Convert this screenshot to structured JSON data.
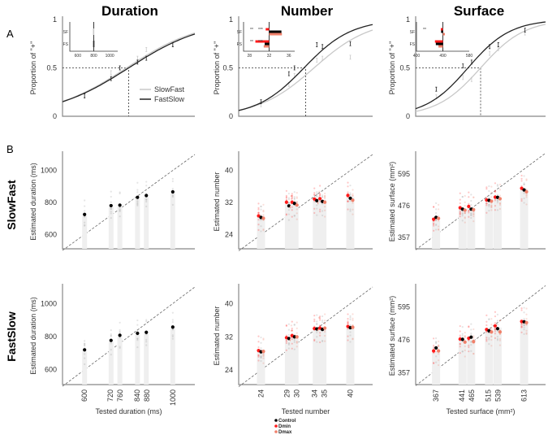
{
  "colors": {
    "control": "#000000",
    "dmin": "#ff1a1a",
    "dmax": "#f0806a",
    "slowfast": "#c8c8c8",
    "fastslow": "#222222",
    "column": "#efefef"
  },
  "titles": [
    "Duration",
    "Number",
    "Surface"
  ],
  "panel_labels": {
    "a": "A",
    "b": "B"
  },
  "row_labels": [
    "SlowFast",
    "FastSlow"
  ],
  "legend_a": {
    "slowfast": "SlowFast",
    "fastslow": "FastSlow"
  },
  "legend_b": {
    "control": "Control",
    "dmin": "Dmin",
    "dmax": "Dmax"
  },
  "chart_data": [
    {
      "type": "line",
      "panel": "A",
      "dimension": "Duration",
      "ylabel": "Proportion of \"+\"",
      "yticks": [
        "0",
        "0.5",
        "1"
      ],
      "ylim": [
        0,
        1
      ],
      "xlim": [
        500,
        1100
      ],
      "standard": 800,
      "x": [
        600,
        720,
        760,
        840,
        880,
        1000
      ],
      "series": [
        {
          "name": "SlowFast",
          "pse": 790,
          "slope": 170,
          "values": [
            0.22,
            0.45,
            0.5,
            0.6,
            0.69,
            0.75
          ]
        },
        {
          "name": "FastSlow",
          "pse": 800,
          "slope": 173,
          "values": [
            0.21,
            0.39,
            0.5,
            0.56,
            0.6,
            0.74
          ]
        }
      ],
      "inset": {
        "xticks": [
          "600",
          "800",
          "1000"
        ],
        "xtick_values": [
          600,
          800,
          1000
        ],
        "xlim": [
          500,
          1100
        ],
        "rows": [
          "SF",
          "FS"
        ],
        "bars": {
          "SF": {
            "control": 798
          },
          "FS": {
            "control": 800
          }
        }
      }
    },
    {
      "type": "line",
      "panel": "A",
      "dimension": "Number",
      "ylabel": "Proportion of \"+\"",
      "yticks": [
        "0",
        "0.5",
        "1"
      ],
      "ylim": [
        0,
        1
      ],
      "xlim": [
        20,
        44
      ],
      "standard": 32,
      "x": [
        24,
        29,
        30,
        34,
        35,
        40
      ],
      "series": [
        {
          "name": "SlowFast",
          "pse": 33.5,
          "slope": 5,
          "values": [
            0.12,
            0.33,
            0.42,
            0.58,
            0.6,
            0.61
          ]
        },
        {
          "name": "FastSlow",
          "pse": 31.7,
          "slope": 4.25,
          "values": [
            0.15,
            0.44,
            0.5,
            0.74,
            0.72,
            0.75
          ]
        }
      ],
      "inset": {
        "xticks": [
          "28",
          "32",
          "36"
        ],
        "xtick_values": [
          28,
          32,
          36
        ],
        "xlim": [
          26.8,
          37.2
        ],
        "rows": [
          "SF",
          "FS"
        ],
        "bars": {
          "SF": {
            "dmin": 31.3,
            "control": 34.5,
            "dmax": 34.6
          },
          "FS": {
            "dmin": 29.2,
            "control": 31.1,
            "dmax": 30.9
          }
        },
        "annotations": [
          "**",
          "***",
          "**",
          "***"
        ]
      }
    },
    {
      "type": "line",
      "panel": "A",
      "dimension": "Surface",
      "ylabel": "Proportion of \"+\"",
      "yticks": [
        "0",
        "0.5",
        "1"
      ],
      "ylim": [
        0,
        1
      ],
      "xlim": [
        310,
        670
      ],
      "standard": 490,
      "x": [
        367,
        441,
        465,
        515,
        539,
        613
      ],
      "series": [
        {
          "name": "SlowFast",
          "pse": 490,
          "slope": 61,
          "values": [
            0.2,
            0.4,
            0.38,
            0.65,
            0.7,
            0.86
          ]
        },
        {
          "name": "FastSlow",
          "pse": 455,
          "slope": 59,
          "values": [
            0.28,
            0.52,
            0.56,
            0.72,
            0.74,
            0.89
          ]
        }
      ],
      "inset": {
        "xticks": [
          "400",
          "490",
          "580"
        ],
        "xtick_values": [
          400,
          490,
          580
        ],
        "xlim": [
          400,
          580
        ],
        "rows": [
          "SF",
          "FS"
        ],
        "bars": {
          "SF": {
            "dmin": 483,
            "control": 484,
            "dmax": 497
          },
          "FS": {
            "dmin": 463,
            "control": 466,
            "dmax": 475
          }
        },
        "annotations": [
          "**"
        ]
      }
    },
    {
      "type": "scatter",
      "panel": "B",
      "dimension": "Duration",
      "condition": "SlowFast",
      "ylabel": "Estimated duration (ms)",
      "xlabel": "Tested duration (ms)",
      "yticks": [
        600,
        800,
        1000
      ],
      "xlim": [
        500,
        1100
      ],
      "ylim": [
        510,
        1100
      ],
      "x": [
        600,
        720,
        760,
        840,
        880,
        1000
      ],
      "series": [
        {
          "name": "Control",
          "values": [
            725,
            780,
            783,
            832,
            843,
            866
          ]
        }
      ]
    },
    {
      "type": "scatter",
      "panel": "B",
      "dimension": "Number",
      "condition": "SlowFast",
      "ylabel": "Estimated number",
      "xlabel": "Tested number",
      "yticks": [
        24,
        32,
        40
      ],
      "xlim": [
        20,
        44
      ],
      "ylim": [
        20.5,
        44
      ],
      "x": [
        24,
        29,
        30,
        34,
        35,
        40
      ],
      "series": [
        {
          "name": "Dmin",
          "values": [
            28.7,
            32.1,
            32.1,
            32.9,
            33.0,
            33.8
          ]
        },
        {
          "name": "Control",
          "values": [
            28.3,
            31.2,
            31.8,
            32.5,
            32.3,
            33.1
          ]
        },
        {
          "name": "Dmax",
          "values": [
            28.1,
            30.9,
            31.4,
            31.9,
            32.1,
            32.6
          ]
        }
      ]
    },
    {
      "type": "scatter",
      "panel": "B",
      "dimension": "Surface",
      "condition": "SlowFast",
      "ylabel": "Estimated surface (mm²)",
      "xlabel": "Tested surface (mm²)",
      "yticks": [
        357,
        476,
        595
      ],
      "xlim": [
        310,
        673
      ],
      "ylim": [
        314,
        668
      ],
      "x": [
        367,
        441,
        465,
        515,
        539,
        613
      ],
      "series": [
        {
          "name": "Dmin",
          "values": [
            425,
            468,
            473,
            497,
            508,
            541
          ]
        },
        {
          "name": "Control",
          "values": [
            432,
            463,
            463,
            496,
            507,
            535
          ]
        },
        {
          "name": "Dmax",
          "values": [
            428,
            459,
            461,
            493,
            502,
            528
          ]
        }
      ]
    },
    {
      "type": "scatter",
      "panel": "B",
      "dimension": "Duration",
      "condition": "FastSlow",
      "ylabel": "Estimated duration (ms)",
      "xlabel": "Tested duration (ms)",
      "yticks": [
        600,
        800,
        1000
      ],
      "xticks": [
        "600",
        "720",
        "760",
        "840",
        "880",
        "1000"
      ],
      "xlim": [
        500,
        1100
      ],
      "ylim": [
        510,
        1100
      ],
      "x": [
        600,
        720,
        760,
        840,
        880,
        1000
      ],
      "series": [
        {
          "name": "Control",
          "values": [
            720,
            777,
            808,
            820,
            826,
            858
          ]
        }
      ]
    },
    {
      "type": "scatter",
      "panel": "B",
      "dimension": "Number",
      "condition": "FastSlow",
      "ylabel": "Estimated number",
      "xlabel": "Tested number",
      "yticks": [
        24,
        32,
        40
      ],
      "xticks": [
        "24",
        "29",
        "30",
        "34",
        "35",
        "40"
      ],
      "xlim": [
        20,
        44
      ],
      "ylim": [
        20.5,
        44
      ],
      "x": [
        24,
        29,
        30,
        34,
        35,
        40
      ],
      "series": [
        {
          "name": "Dmin",
          "values": [
            28.7,
            31.8,
            32.3,
            34.0,
            34.1,
            34.5
          ]
        },
        {
          "name": "Control",
          "values": [
            28.4,
            31.6,
            32.0,
            33.9,
            33.8,
            34.2
          ]
        },
        {
          "name": "Dmax",
          "values": [
            28.5,
            31.3,
            32.0,
            33.7,
            34.1,
            34.3
          ]
        }
      ]
    },
    {
      "type": "scatter",
      "panel": "B",
      "dimension": "Surface",
      "condition": "FastSlow",
      "ylabel": "Estimated surface (mm²)",
      "xlabel": "Tested surface (mm²)",
      "yticks": [
        357,
        476,
        595
      ],
      "xticks": [
        "367",
        "441",
        "465",
        "515",
        "539",
        "613"
      ],
      "xlim": [
        310,
        673
      ],
      "ylim": [
        314,
        668
      ],
      "x": [
        367,
        441,
        465,
        515,
        539,
        613
      ],
      "series": [
        {
          "name": "Dmin",
          "values": [
            436,
            479,
            482,
            514,
            527,
            543
          ]
        },
        {
          "name": "Control",
          "values": [
            447,
            478,
            486,
            509,
            517,
            542
          ]
        },
        {
          "name": "Dmax",
          "values": [
            436,
            468,
            470,
            505,
            505,
            539
          ]
        }
      ]
    }
  ]
}
